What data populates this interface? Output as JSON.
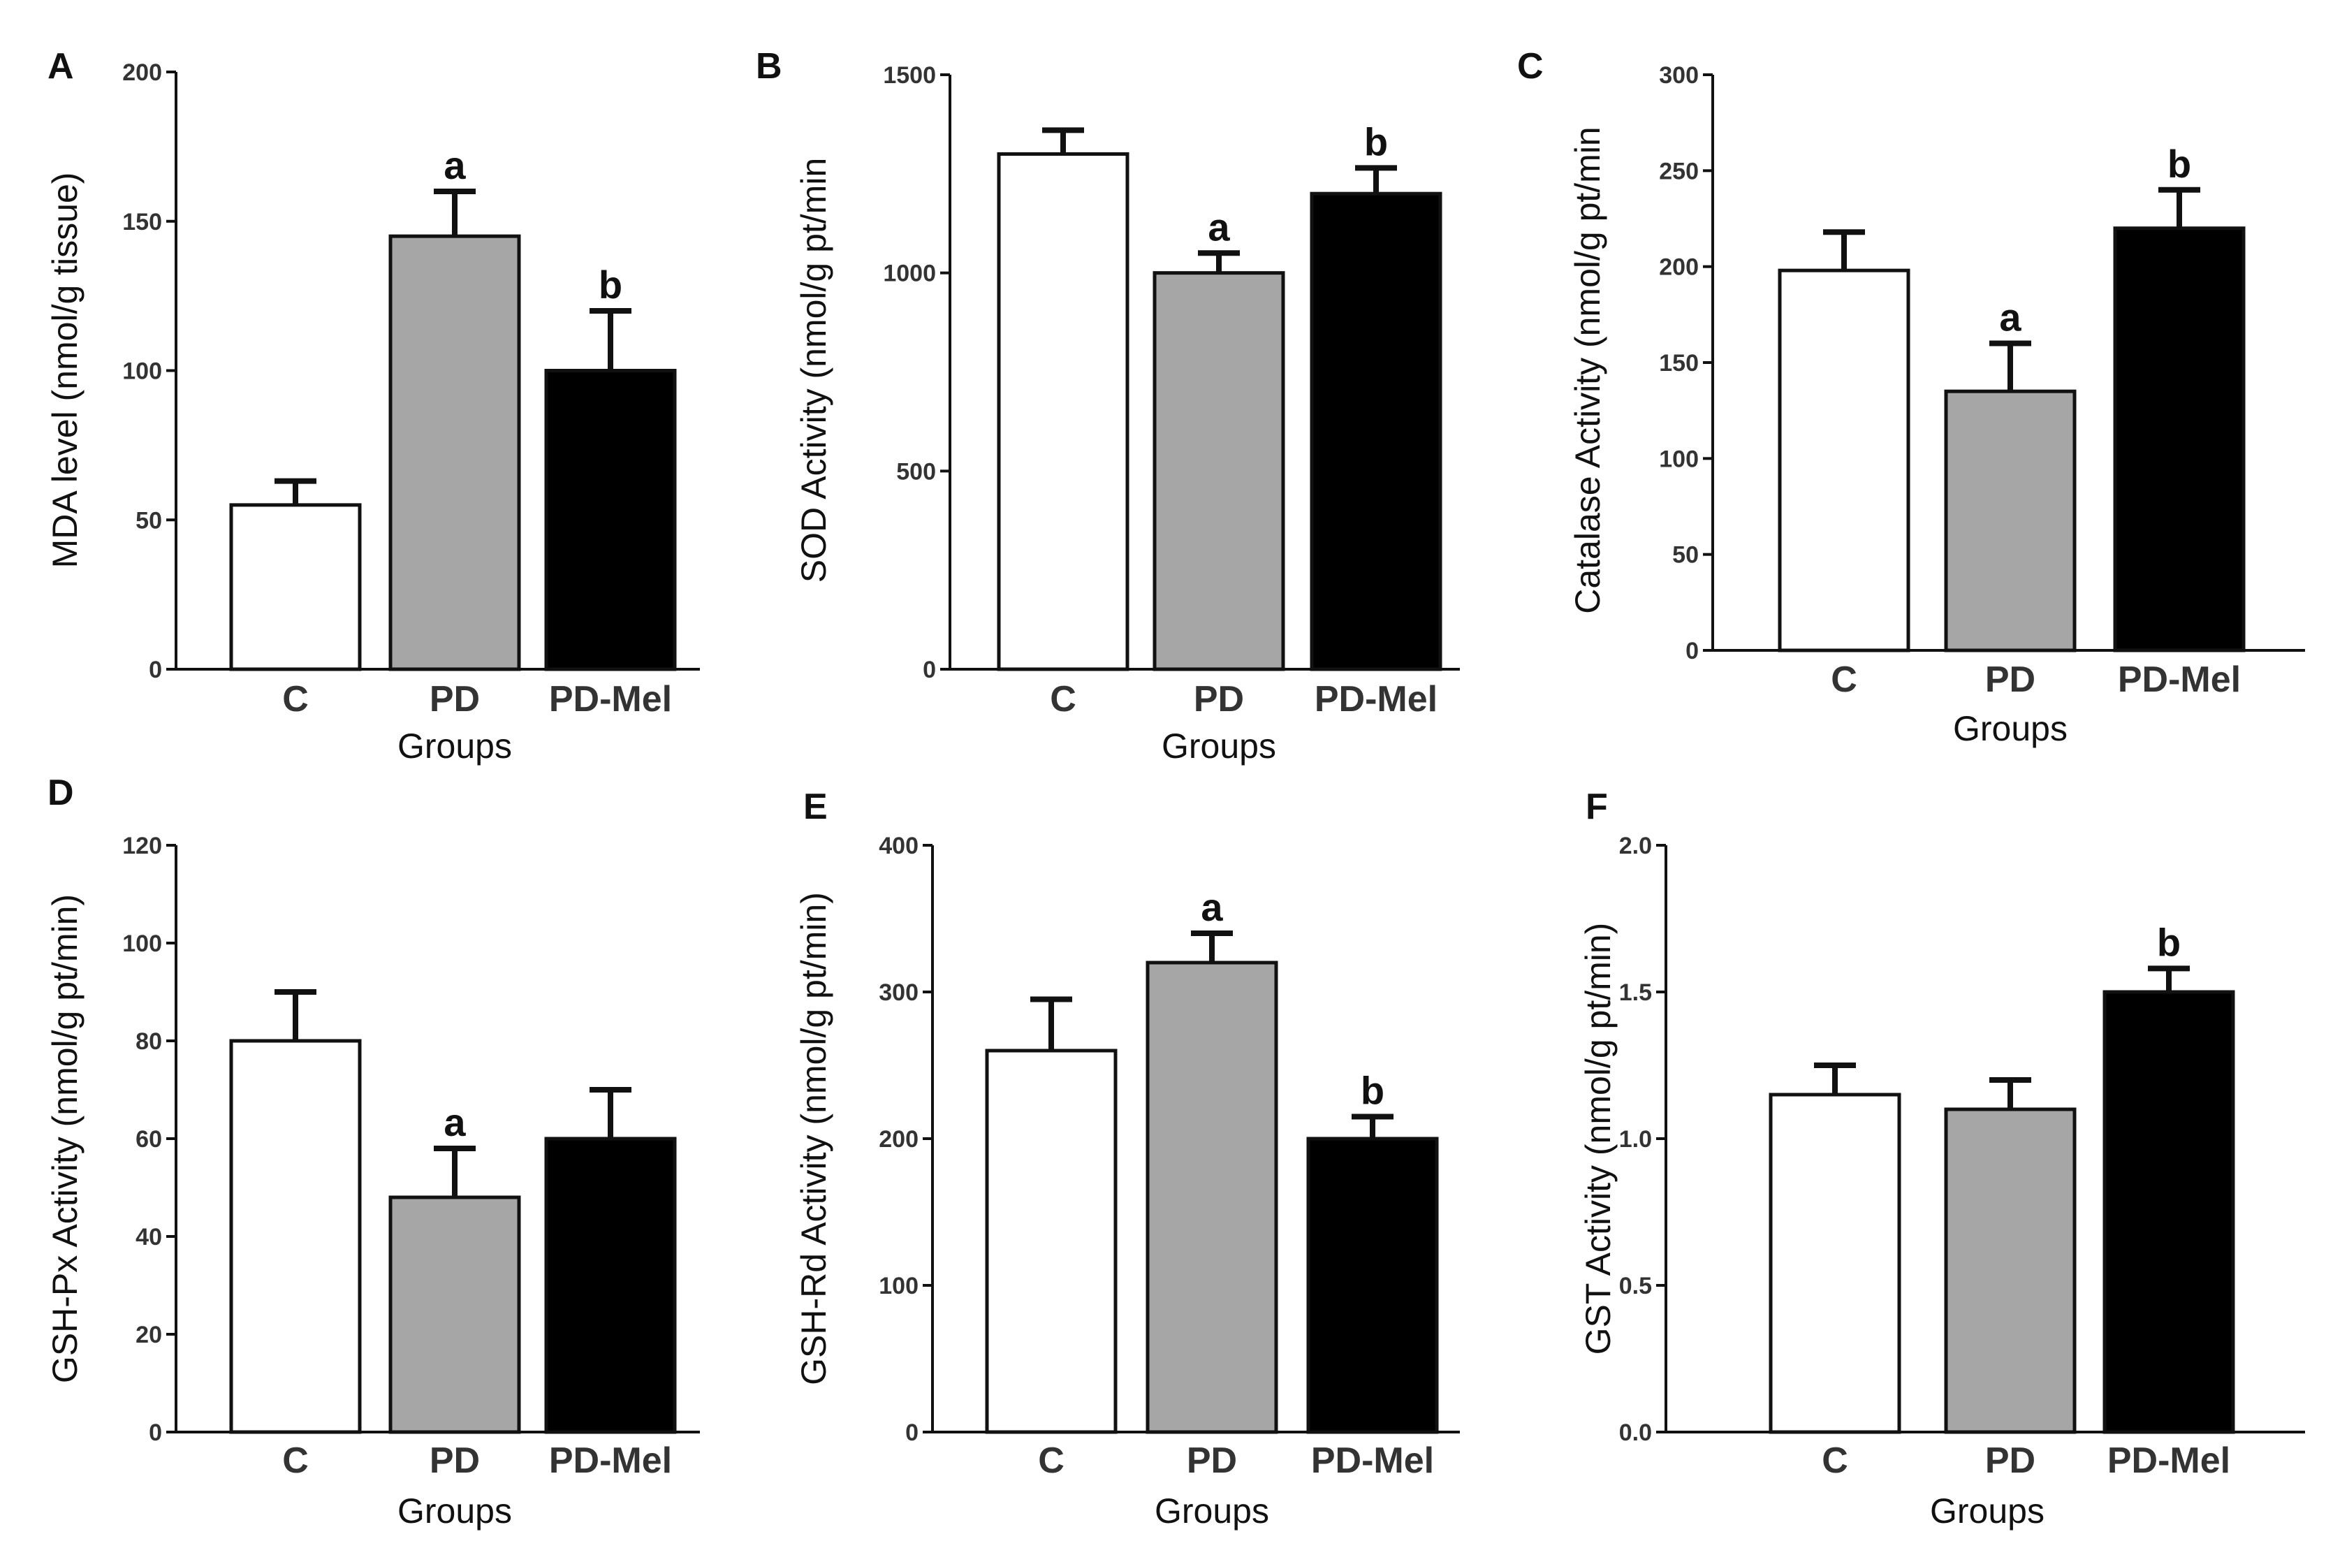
{
  "colors": {
    "C": "#ffffff",
    "PD": "#a6a6a6",
    "PD-Mel": "#000000",
    "stroke": "#111111"
  },
  "chart_data": [
    {
      "panel": "A",
      "type": "bar",
      "categories": [
        "C",
        "PD",
        "PD-Mel"
      ],
      "values": [
        55,
        145,
        100
      ],
      "errors": [
        8,
        15,
        20
      ],
      "significance": [
        "",
        "a",
        "b"
      ],
      "ylabel": "MDA level (nmol/g tissue)",
      "xlabel": "Groups",
      "ylim": [
        0,
        200
      ],
      "yticks": [
        0,
        50,
        100,
        150,
        200
      ],
      "yticklabels": [
        "0",
        "50",
        "100",
        "150",
        "200"
      ]
    },
    {
      "panel": "B",
      "type": "bar",
      "categories": [
        "C",
        "PD",
        "PD-Mel"
      ],
      "values": [
        1300,
        1000,
        1200
      ],
      "errors": [
        60,
        50,
        65
      ],
      "significance": [
        "",
        "a",
        "b"
      ],
      "ylabel": "SOD Activity (nmol/g pt/min",
      "xlabel": "Groups",
      "ylim": [
        0,
        1500
      ],
      "yticks": [
        0,
        500,
        1000,
        1500
      ],
      "yticklabels": [
        "0",
        "500",
        "1000",
        "1500"
      ]
    },
    {
      "panel": "C",
      "type": "bar",
      "categories": [
        "C",
        "PD",
        "PD-Mel"
      ],
      "values": [
        198,
        135,
        220
      ],
      "errors": [
        20,
        25,
        20
      ],
      "significance": [
        "",
        "a",
        "b"
      ],
      "ylabel": "Catalase Activity (nmol/g pt/min",
      "xlabel": "Groups",
      "ylim": [
        0,
        300
      ],
      "yticks": [
        0,
        50,
        100,
        150,
        200,
        250,
        300
      ],
      "yticklabels": [
        "0",
        "50",
        "100",
        "150",
        "200",
        "250",
        "300"
      ]
    },
    {
      "panel": "D",
      "type": "bar",
      "categories": [
        "C",
        "PD",
        "PD-Mel"
      ],
      "values": [
        80,
        48,
        60
      ],
      "errors": [
        10,
        10,
        10
      ],
      "significance": [
        "",
        "a",
        ""
      ],
      "ylabel": "GSH-Px Activity (nmol/g pt/min)",
      "xlabel": "Groups",
      "ylim": [
        0,
        120
      ],
      "yticks": [
        0,
        20,
        40,
        60,
        80,
        100,
        120
      ],
      "yticklabels": [
        "0",
        "20",
        "40",
        "60",
        "80",
        "100",
        "120"
      ]
    },
    {
      "panel": "E",
      "type": "bar",
      "categories": [
        "C",
        "PD",
        "PD-Mel"
      ],
      "values": [
        260,
        320,
        200
      ],
      "errors": [
        35,
        20,
        15
      ],
      "significance": [
        "",
        "a",
        "b"
      ],
      "ylabel": "GSH-Rd Activity (nmol/g pt/min)",
      "xlabel": "Groups",
      "ylim": [
        0,
        400
      ],
      "yticks": [
        0,
        100,
        200,
        300,
        400
      ],
      "yticklabels": [
        "0",
        "100",
        "200",
        "300",
        "400"
      ]
    },
    {
      "panel": "F",
      "type": "bar",
      "categories": [
        "C",
        "PD",
        "PD-Mel"
      ],
      "values": [
        1.15,
        1.1,
        1.5
      ],
      "errors": [
        0.1,
        0.1,
        0.08
      ],
      "significance": [
        "",
        "",
        "b"
      ],
      "ylabel": "GST Activity (nmol/g pt/min)",
      "xlabel": "Groups",
      "ylim": [
        0,
        2.0
      ],
      "yticks": [
        0,
        0.5,
        1.0,
        1.5,
        2.0
      ],
      "yticklabels": [
        "0.0",
        "0.5",
        "1.0",
        "1.5",
        "2.0"
      ]
    }
  ]
}
